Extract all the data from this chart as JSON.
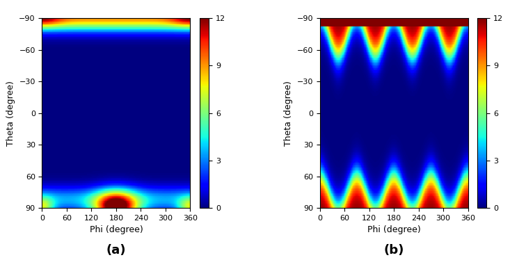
{
  "phi_range": [
    0,
    360
  ],
  "theta_range": [
    -90,
    90
  ],
  "clim": [
    0,
    12
  ],
  "colorbar_ticks": [
    0,
    3,
    6,
    9,
    12
  ],
  "xlabel": "Phi (degree)",
  "ylabel": "Theta (degree)",
  "label_a": "(a)",
  "label_b": "(b)",
  "phi_ticks": [
    0,
    60,
    120,
    180,
    240,
    300,
    360
  ],
  "theta_ticks": [
    -90,
    -60,
    -30,
    0,
    30,
    60,
    90
  ],
  "n_phi": 400,
  "n_theta": 200,
  "colormap": "jet",
  "background": "white"
}
